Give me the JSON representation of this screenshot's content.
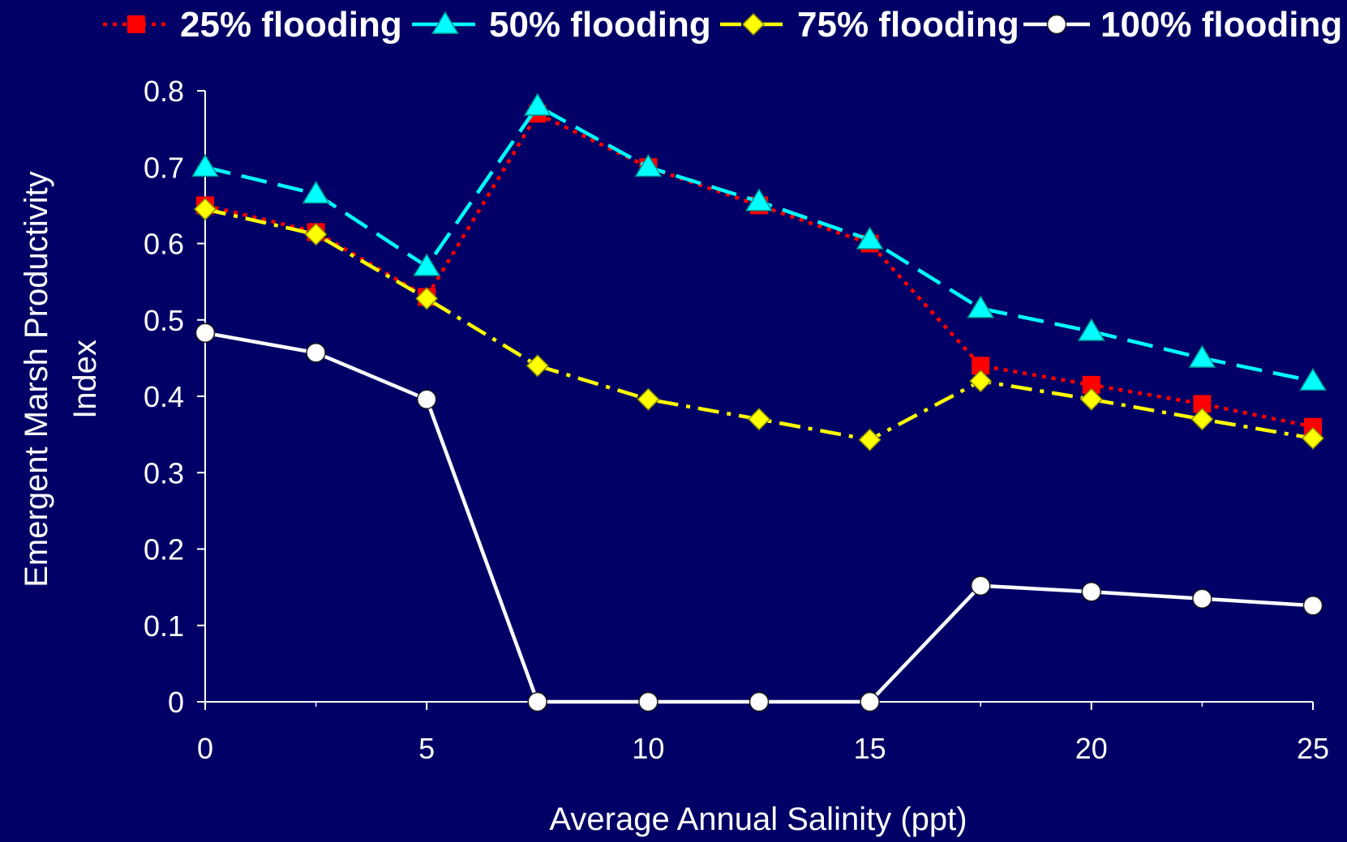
{
  "colors": {
    "background": "#000066",
    "axis": "#FFFFFF",
    "text": "#FFFFFF"
  },
  "chart_data": {
    "type": "line",
    "title": "",
    "xlabel": "Average Annual Salinity (ppt)",
    "ylabel_lines": [
      "Emergent Marsh Productivity",
      "Index"
    ],
    "xlim": [
      0,
      25
    ],
    "ylim": [
      0,
      0.8
    ],
    "x_ticks": [
      0,
      5,
      10,
      15,
      20,
      25
    ],
    "x_tick_labels": [
      "0",
      "5",
      "10",
      "15",
      "20",
      "25"
    ],
    "y_ticks": [
      0,
      0.1,
      0.2,
      0.3,
      0.4,
      0.5,
      0.6,
      0.7,
      0.8
    ],
    "y_tick_labels": [
      "0",
      "0.1",
      "0.2",
      "0.3",
      "0.4",
      "0.5",
      "0.6",
      "0.7",
      "0.8"
    ],
    "grid": false,
    "legend_position": "top",
    "x": [
      0,
      2.5,
      5,
      7.5,
      10,
      12.5,
      15,
      17.5,
      20,
      22.5,
      25
    ],
    "series": [
      {
        "name": "25% flooding",
        "color": "#FF0000",
        "line_style": "dotted",
        "marker": "square",
        "values": [
          0.65,
          0.615,
          0.53,
          0.77,
          0.7,
          0.65,
          0.6,
          0.44,
          0.415,
          0.39,
          0.36
        ]
      },
      {
        "name": "50% flooding",
        "color": "#00FFFF",
        "line_style": "dashed",
        "marker": "triangle",
        "values": [
          0.7,
          0.665,
          0.57,
          0.78,
          0.7,
          0.655,
          0.605,
          0.515,
          0.485,
          0.45,
          0.42
        ]
      },
      {
        "name": "75% flooding",
        "color": "#FFFF00",
        "line_style": "dash-dot",
        "marker": "diamond",
        "values": [
          0.645,
          0.612,
          0.528,
          0.44,
          0.396,
          0.37,
          0.343,
          0.42,
          0.396,
          0.37,
          0.345
        ]
      },
      {
        "name": "100% flooding",
        "color": "#FFFFFF",
        "line_style": "solid",
        "marker": "circle",
        "values": [
          0.483,
          0.457,
          0.396,
          0.0,
          0.0,
          0.0,
          0.0,
          0.152,
          0.144,
          0.135,
          0.126
        ]
      }
    ]
  }
}
